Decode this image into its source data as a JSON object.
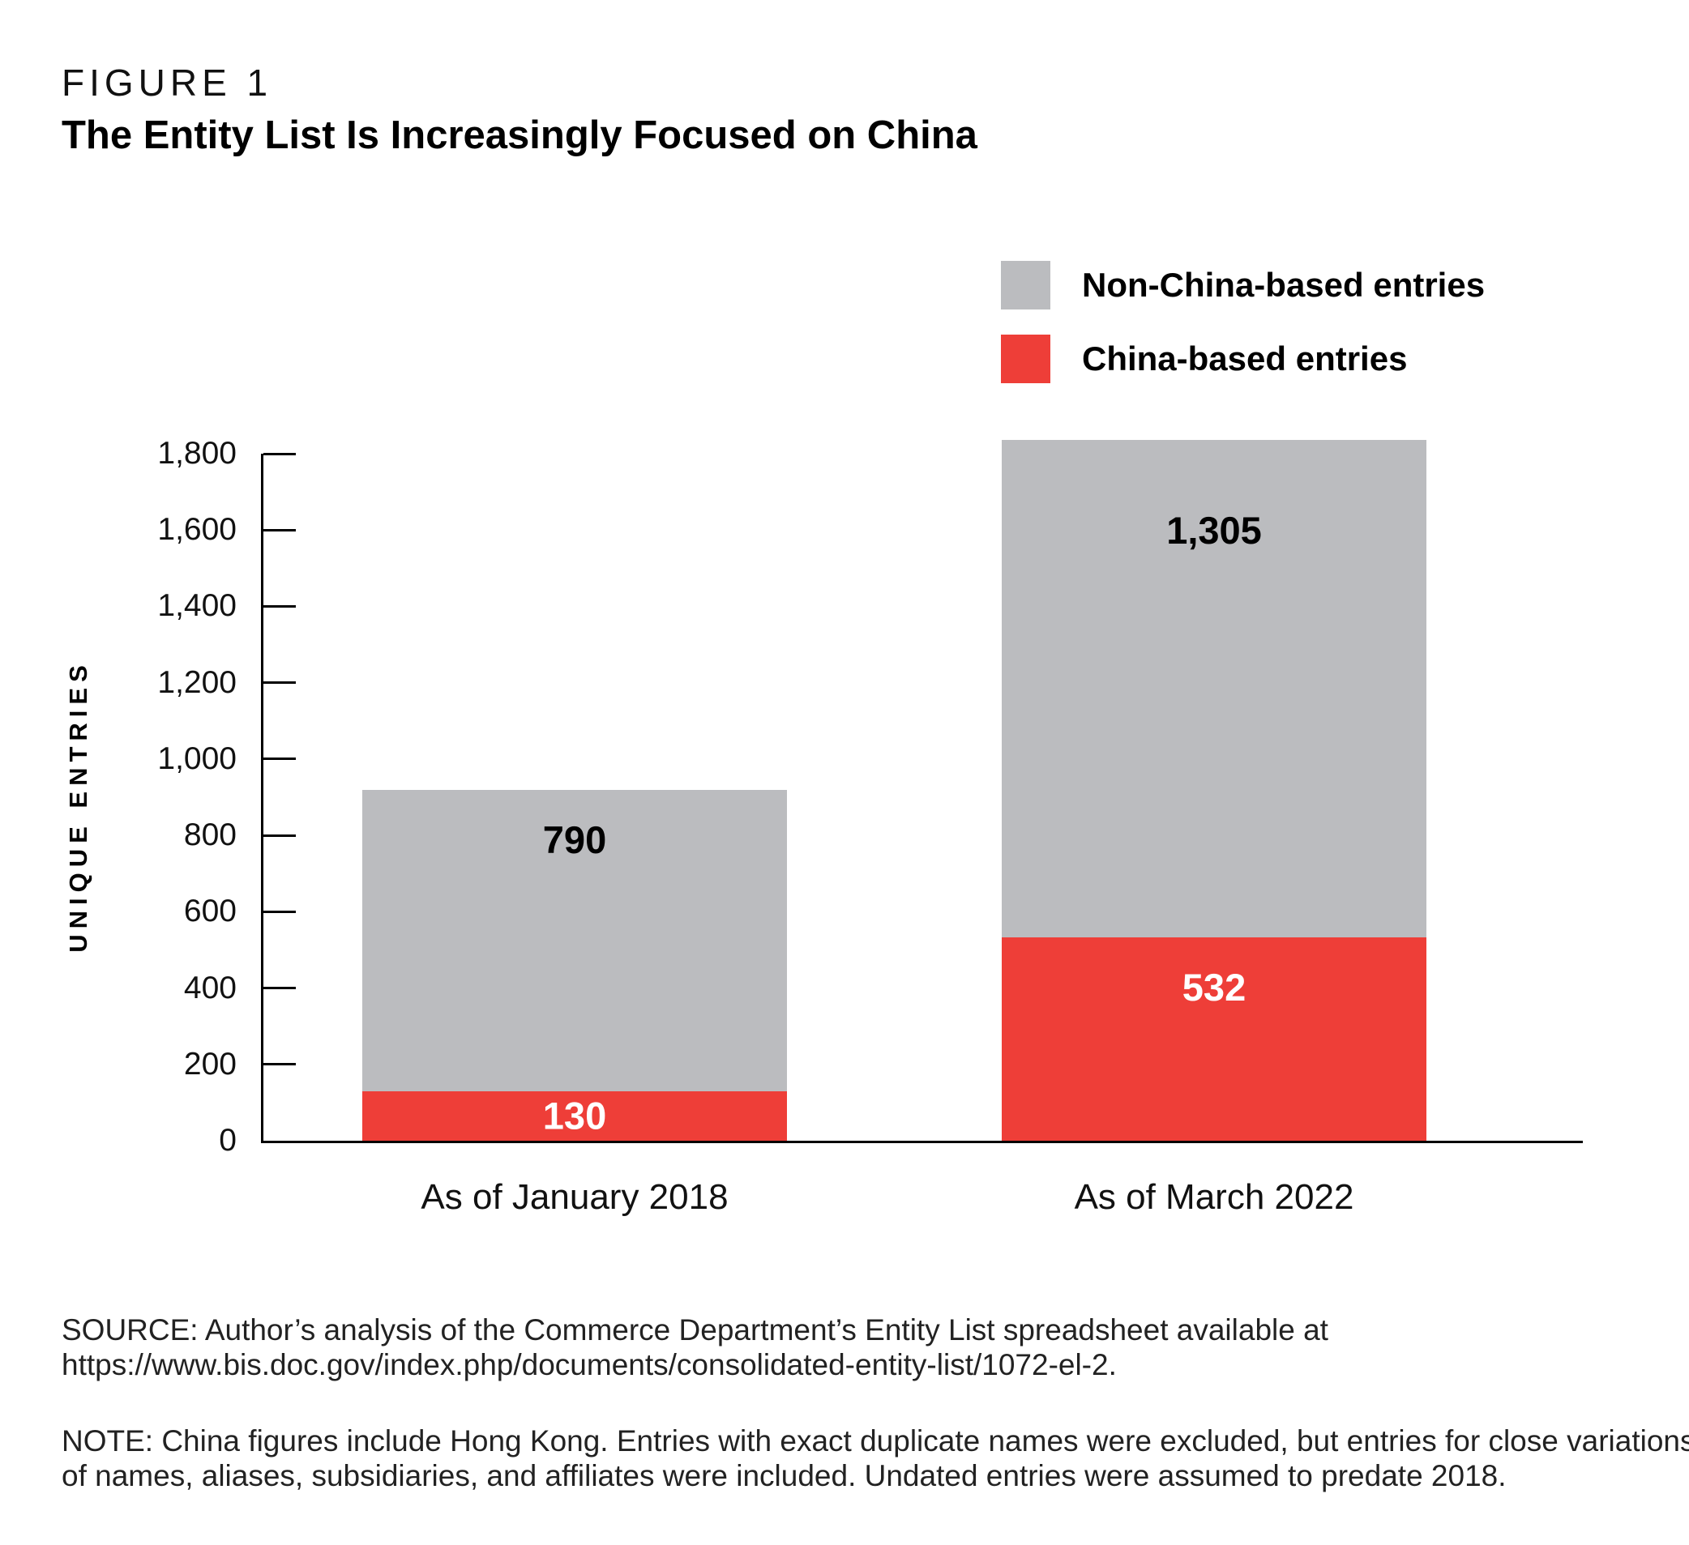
{
  "figure": {
    "label": "FIGURE 1",
    "title": "The Entity List Is Increasingly Focused on China"
  },
  "legend": {
    "items": [
      {
        "label": "Non-China-based entries",
        "color": "#bbbcbf"
      },
      {
        "label": "China-based entries",
        "color": "#ee3e38"
      }
    ]
  },
  "chart_data": {
    "type": "bar",
    "stacked": true,
    "categories": [
      "As of January 2018",
      "As of March 2022"
    ],
    "series": [
      {
        "name": "China-based entries",
        "color": "#ee3e38",
        "values": [
          130,
          532
        ],
        "labels": [
          "130",
          "532"
        ]
      },
      {
        "name": "Non-China-based entries",
        "color": "#bbbcbf",
        "values": [
          790,
          1305
        ],
        "labels": [
          "790",
          "1,305"
        ]
      }
    ],
    "totals": [
      920,
      1837
    ],
    "title": "The Entity List Is Increasingly Focused on China",
    "xlabel": "",
    "ylabel": "UNIQUE ENTRIES",
    "ylim": [
      0,
      1800
    ],
    "ytick_step": 200,
    "yticks": [
      "0",
      "200",
      "400",
      "600",
      "800",
      "1,000",
      "1,200",
      "1,400",
      "1,600",
      "1,800"
    ],
    "grid": false,
    "legend_position": "top-right"
  },
  "source": {
    "line1": "SOURCE: Author’s analysis of the Commerce Department’s Entity List spreadsheet available at",
    "line2": "https://www.bis.doc.gov/index.php/documents/consolidated-entity-list/1072-el-2."
  },
  "note": {
    "line1": "NOTE: China figures include Hong Kong. Entries with exact duplicate names were excluded, but entries for close variations",
    "line2": "of names, aliases, subsidiaries, and affiliates were included. Undated entries were assumed to predate 2018."
  }
}
